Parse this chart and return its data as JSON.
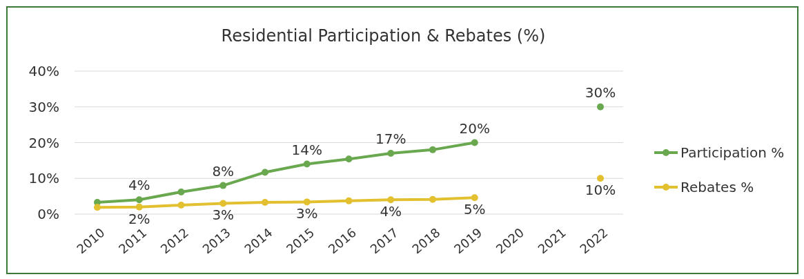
{
  "chart_data": {
    "type": "line",
    "title": "Residential Participation & Rebates (%)",
    "categories": [
      "2010",
      "2011",
      "2012",
      "2013",
      "2014",
      "2015",
      "2016",
      "2017",
      "2018",
      "2019",
      "2020",
      "2021",
      "2022"
    ],
    "series": [
      {
        "name": "Participation %",
        "color": "#6aa84f",
        "values": [
          3.3,
          4,
          6.2,
          8,
          11.7,
          14,
          15.4,
          17,
          18,
          20,
          null,
          null,
          30
        ],
        "value_labels": [
          null,
          "4%",
          null,
          "8%",
          null,
          "14%",
          null,
          "17%",
          null,
          "20%",
          null,
          null,
          "30%"
        ]
      },
      {
        "name": "Rebates %",
        "color": "#e2c030",
        "values": [
          1.9,
          2,
          2.5,
          3,
          3.3,
          3.4,
          3.7,
          4,
          4.1,
          4.6,
          null,
          null,
          10
        ],
        "value_labels": [
          null,
          "2%",
          null,
          "3%",
          null,
          "3%",
          null,
          "4%",
          null,
          "5%",
          null,
          null,
          "10%"
        ]
      }
    ],
    "ylim": [
      0,
      40
    ],
    "yticks": [
      {
        "value": 0,
        "label": "0%"
      },
      {
        "value": 10,
        "label": "10%"
      },
      {
        "value": 20,
        "label": "20%"
      },
      {
        "value": 30,
        "label": "30%"
      },
      {
        "value": 40,
        "label": "40%"
      }
    ],
    "grid": "y",
    "legend": "right",
    "marker": "circle",
    "line_style": "solid"
  }
}
